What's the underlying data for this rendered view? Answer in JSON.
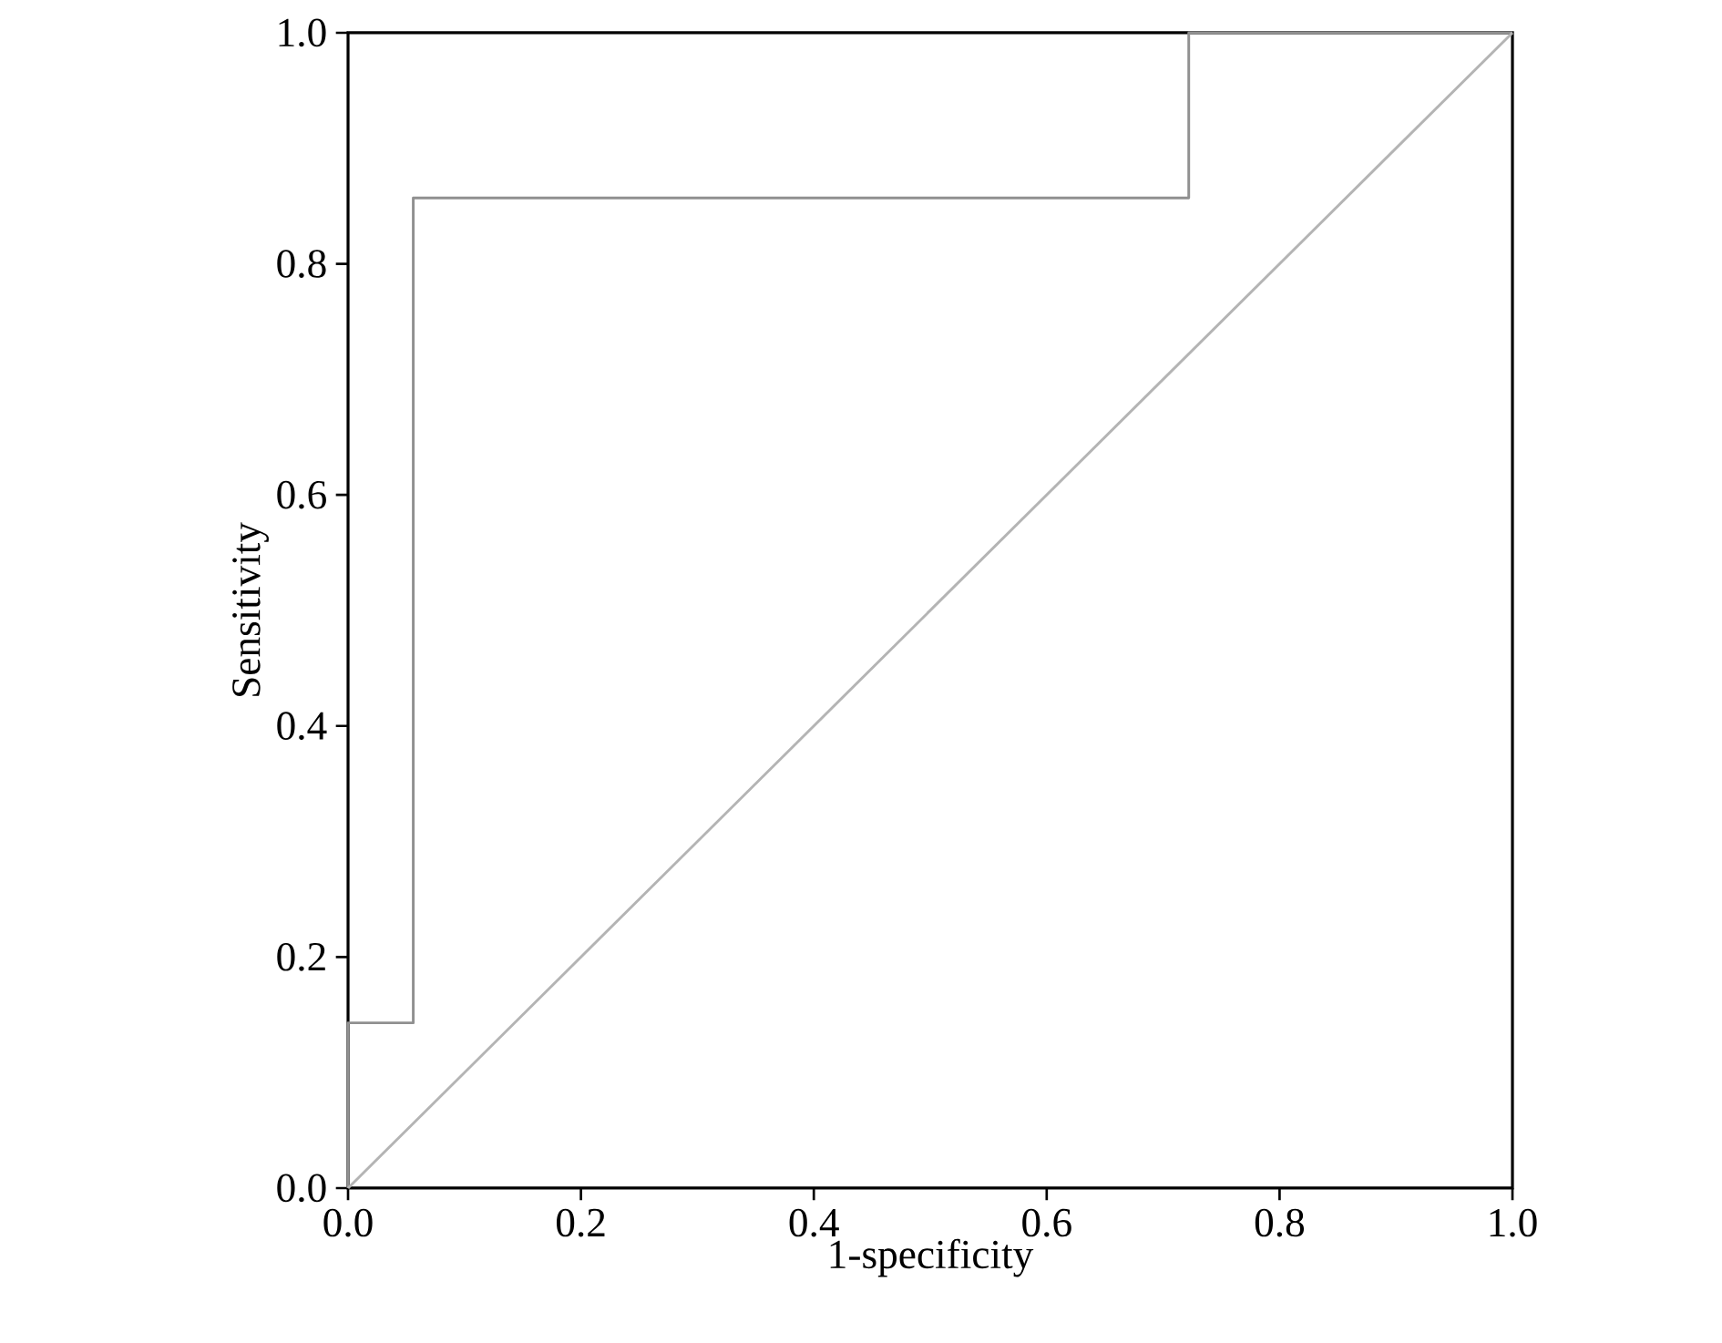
{
  "chart_data": {
    "type": "line",
    "xlabel": "1-specificity",
    "ylabel": "Sensitivity",
    "xlim": [
      0,
      1
    ],
    "ylim": [
      0,
      1
    ],
    "xticks": [
      {
        "value": 0,
        "label": "0.0"
      },
      {
        "value": 0.2,
        "label": "0.2"
      },
      {
        "value": 0.4,
        "label": "0.4"
      },
      {
        "value": 0.6,
        "label": "0.6"
      },
      {
        "value": 0.8,
        "label": "0.8"
      },
      {
        "value": 1,
        "label": "1.0"
      }
    ],
    "yticks": [
      {
        "value": 0,
        "label": "0.0"
      },
      {
        "value": 0.2,
        "label": "0.2"
      },
      {
        "value": 0.4,
        "label": "0.4"
      },
      {
        "value": 0.6,
        "label": "0.6"
      },
      {
        "value": 0.8,
        "label": "0.8"
      },
      {
        "value": 1,
        "label": "1.0"
      }
    ],
    "series": [
      {
        "color": "#909090",
        "x": [
          0,
          0,
          0.056,
          0.056,
          0.722,
          0.722,
          1
        ],
        "values": [
          0,
          0.143,
          0.143,
          0.857,
          0.857,
          1,
          1
        ]
      },
      {
        "color": "#b4b4b4",
        "x": [
          0,
          1
        ],
        "values": [
          0,
          1
        ]
      }
    ],
    "marker": "none",
    "line_style": "solid"
  }
}
